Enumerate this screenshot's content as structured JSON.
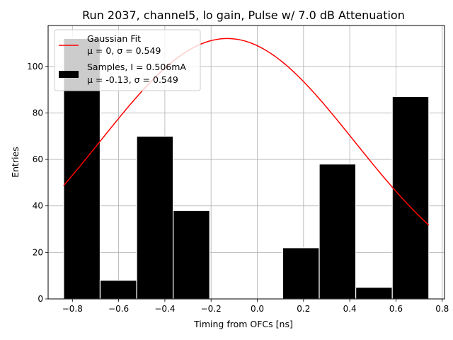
{
  "chart_data": {
    "type": "bar",
    "title": "Run 2037, channel5, lo gain, Pulse w/ 7.0 dB Attenuation",
    "xlabel": "Timing from OFCs [ns]",
    "ylabel": "Entries",
    "xlim": [
      -0.905,
      0.81
    ],
    "ylim": [
      0,
      117.6
    ],
    "xticks": [
      -0.8,
      -0.6,
      -0.4,
      -0.2,
      0.0,
      0.2,
      0.4,
      0.6,
      0.8
    ],
    "xtick_labels": [
      "−0.8",
      "−0.6",
      "−0.4",
      "−0.2",
      "0.0",
      "0.2",
      "0.4",
      "0.6",
      "0.8"
    ],
    "yticks": [
      0,
      20,
      40,
      60,
      80,
      100
    ],
    "ytick_labels": [
      "0",
      "20",
      "40",
      "60",
      "80",
      "100"
    ],
    "grid": true,
    "legend_position": "upper left",
    "histogram": {
      "name": "Samples, I = 0.506mA",
      "stats": "μ = -0.13, σ = 0.549",
      "color": "#000000",
      "edgecolor": "#ffffff",
      "bin_edges": [
        -0.838,
        -0.68,
        -0.522,
        -0.364,
        -0.206,
        -0.048,
        0.11,
        0.268,
        0.426,
        0.584,
        0.742
      ],
      "counts": [
        112,
        8,
        70,
        38,
        0,
        0,
        22,
        58,
        5,
        87
      ]
    },
    "fit": {
      "name": "Gaussian Fit",
      "stats": "μ = 0, σ = 0.549",
      "color": "#ff0000",
      "x_range": [
        -0.838,
        0.742
      ],
      "mu": -0.13,
      "sigma": 0.549,
      "amplitude": 112
    }
  }
}
